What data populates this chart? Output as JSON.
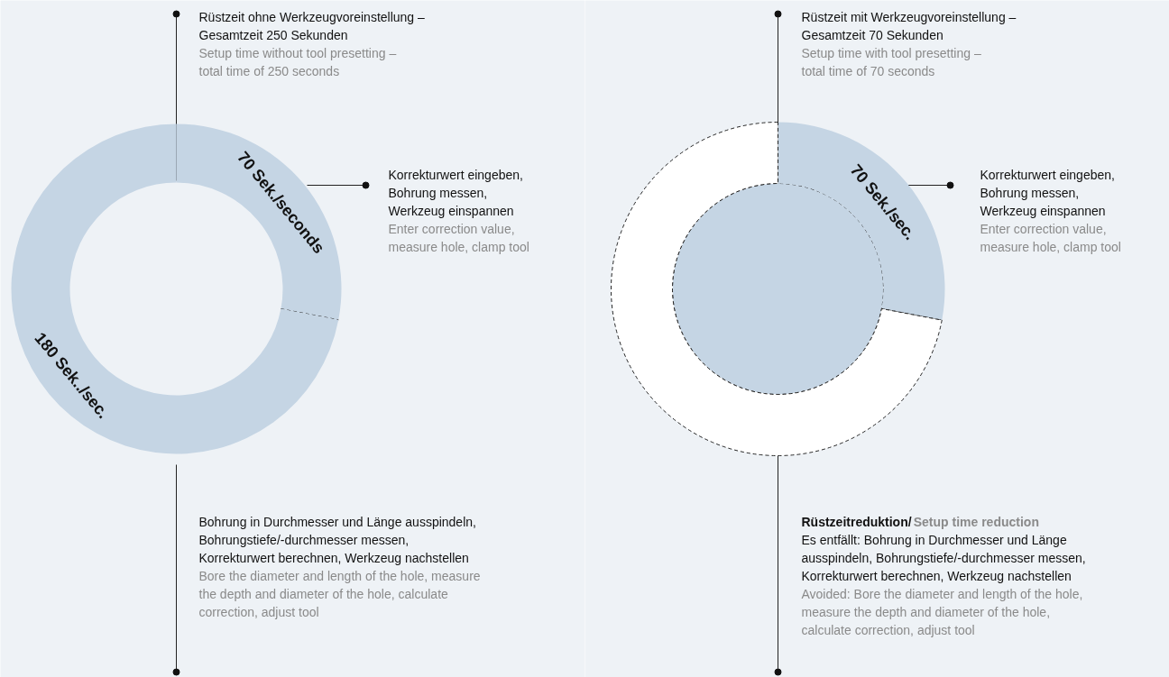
{
  "chart_data": [
    {
      "type": "donut",
      "title": "Rüstzeit ohne Werkzeugvoreinstellung –\nGesamtzeit 250 Sekunden",
      "subtitle": "Setup time without tool presetting –\ntotal time of 250 seconds",
      "categories": [
        null,
        null
      ],
      "values": [
        70,
        180
      ],
      "colors": [
        "#c5d5e4",
        "#c5d5e4"
      ],
      "value_labels": [
        "70 Sek./seconds",
        "180 Sek../sec."
      ],
      "line_style": "dashed",
      "annotations": [
        "Korrekturwert eingeben,\nBohrung messen,\nWerkzeug einspannen",
        "Enter correction value,\nmeasure hole, clamp tool",
        "Bohrung in Durchmesser und Länge ausspindeln,\nBohrungstiefe/-durchmesser messen,\nKorrekturwert berechnen, Werkzeug nachstellen",
        "Bore the diameter and length of the hole, measure\nthe depth and diameter of the hole, calculate\ncorrection, adjust tool"
      ]
    },
    {
      "type": "donut",
      "title": "Rüstzeit mit Werkzeugvoreinstellung –\nGesamtzeit 70 Sekunden",
      "subtitle": "Setup time with tool presetting –\ntotal time of 70 seconds",
      "categories": [
        null,
        null
      ],
      "values": [
        70,
        180
      ],
      "colors": [
        "#c5d5e4",
        "#ffffff"
      ],
      "value_labels": [
        "70 Sek./sec.",
        null
      ],
      "line_style": "dashed",
      "annotations": [
        "Korrekturwert eingeben,\nBohrung messen,\nWerkzeug einspannen",
        "Enter correction value,\nmeasure hole, clamp tool",
        "Rüstzeitreduktion/",
        "Setup time reduction",
        "Es entfällt: Bohrung in Durchmesser und Länge\nausspindeln, Bohrungstiefe/-durchmesser messen,\nKorrekturwert berechnen, Werkzeug nachstellen",
        "Avoided: Bore the diameter and length of the hole,\nmeasure the depth and diameter of the hole,\ncalculate correction, adjust tool"
      ]
    }
  ]
}
